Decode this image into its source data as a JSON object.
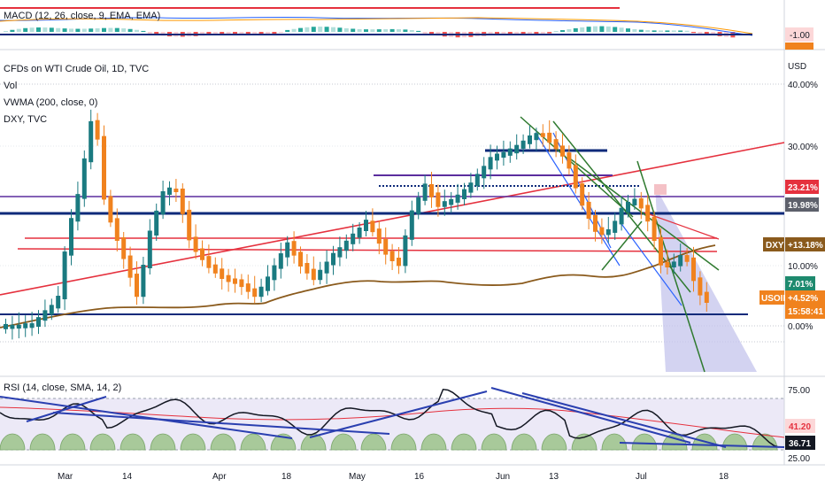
{
  "chart_data": [
    {
      "type": "bar",
      "panel": "macd",
      "title": "MACD (12, 26, close, 9, EMA, EMA)",
      "value_label": "-1.00",
      "grid": false
    },
    {
      "type": "candlestick",
      "panel": "price",
      "title": "CFDs on WTI Crude Oil, 1D, TVC",
      "indicators": [
        "Vol",
        "VWMA (200, close, 0)",
        "DXY, TVC"
      ],
      "y_unit": "USD",
      "y_ticks": [
        "40.00%",
        "30.00%",
        "10.00%",
        "0.00%"
      ],
      "x_ticks": [
        "Mar",
        "14",
        "Apr",
        "18",
        "May",
        "16",
        "Jun",
        "13",
        "Jul",
        "18"
      ],
      "badges": {
        "red_pct": "23.21%",
        "gray_pct": "19.98%",
        "dxy_name": "DXY",
        "dxy_value": "+13.18%",
        "green_pct": "7.01%",
        "usoil_name": "USOIL",
        "usoil_value": "+4.52%",
        "countdown": "15:58:41"
      },
      "grid": true,
      "legend": "top-left"
    },
    {
      "type": "line",
      "panel": "rsi",
      "title": "RSI (14, close, SMA, 14, 2)",
      "y_ticks": [
        "75.00",
        "25.00"
      ],
      "badges": {
        "upper": "41.20",
        "lower": "36.71"
      }
    }
  ],
  "colors": {
    "bull": "#1a7a80",
    "bear": "#f0821e",
    "navy": "#0d2a7a",
    "red_line": "#e5313e",
    "purple": "#5b2d9e",
    "vwma": "#8a5a1c",
    "forest": "#2f7a2f",
    "cone": "#b8b8e8"
  }
}
